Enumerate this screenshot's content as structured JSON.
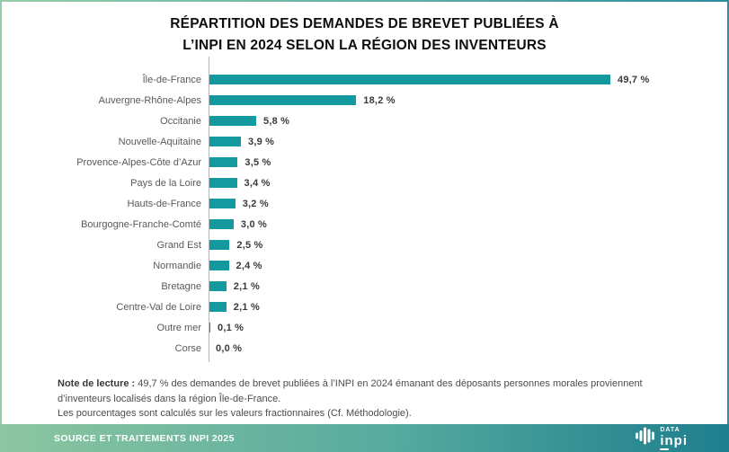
{
  "title": {
    "line1": "RÉPARTITION DES DEMANDES DE BREVET PUBLIÉES À",
    "line2": "L’INPI EN 2024 SELON LA RÉGION DES INVENTEURS"
  },
  "chart_data": {
    "type": "bar",
    "orientation": "horizontal",
    "categories": [
      "Île-de-France",
      "Auvergne-Rhône-Alpes",
      "Occitanie",
      "Nouvelle-Aquitaine",
      "Provence-Alpes-Côte d’Azur",
      "Pays de la Loire",
      "Hauts-de-France",
      "Bourgogne-Franche-Comté",
      "Grand Est",
      "Normandie",
      "Bretagne",
      "Centre-Val de Loire",
      "Outre mer",
      "Corse"
    ],
    "values": [
      49.7,
      18.2,
      5.8,
      3.9,
      3.5,
      3.4,
      3.2,
      3.0,
      2.5,
      2.4,
      2.1,
      2.1,
      0.1,
      0.0
    ],
    "value_labels": [
      "49,7 %",
      "18,2 %",
      "5,8 %",
      "3,9 %",
      "3,5 %",
      "3,4 %",
      "3,2 %",
      "3,0 %",
      "2,5 %",
      "2,4 %",
      "2,1 %",
      "2,1 %",
      "0,1 %",
      "0,0 %"
    ],
    "title": "Répartition des demandes de brevet publiées à l’INPI en 2024 selon la région des inventeurs",
    "xlabel": "",
    "ylabel": "",
    "xlim": [
      0,
      55
    ],
    "grid": false,
    "legend": false,
    "bar_color": "#13999e",
    "axis_color": "#b5b5b5"
  },
  "note": {
    "label": "Note de lecture :",
    "text1": "49,7 % des demandes de brevet publiées à l’INPI en 2024 émanant des déposants personnes morales proviennent d’inventeurs localisés dans la région Île-de-France.",
    "text2": "Les pourcentages sont calculés sur les valeurs fractionnaires (Cf. Méthodologie)."
  },
  "footer": {
    "source": "SOURCE ET TRAITEMENTS INPI 2025",
    "logo_top": "DATA",
    "logo_bottom": "inpi"
  },
  "colors": {
    "bar": "#13999e",
    "border_gradient_left": "#94cda9",
    "border_gradient_right": "#2f8ba0",
    "footer_gradient_left": "#8cc6a1",
    "footer_gradient_right": "#1d7e8d",
    "label_text": "#595959",
    "value_text": "#3a3a3a"
  }
}
